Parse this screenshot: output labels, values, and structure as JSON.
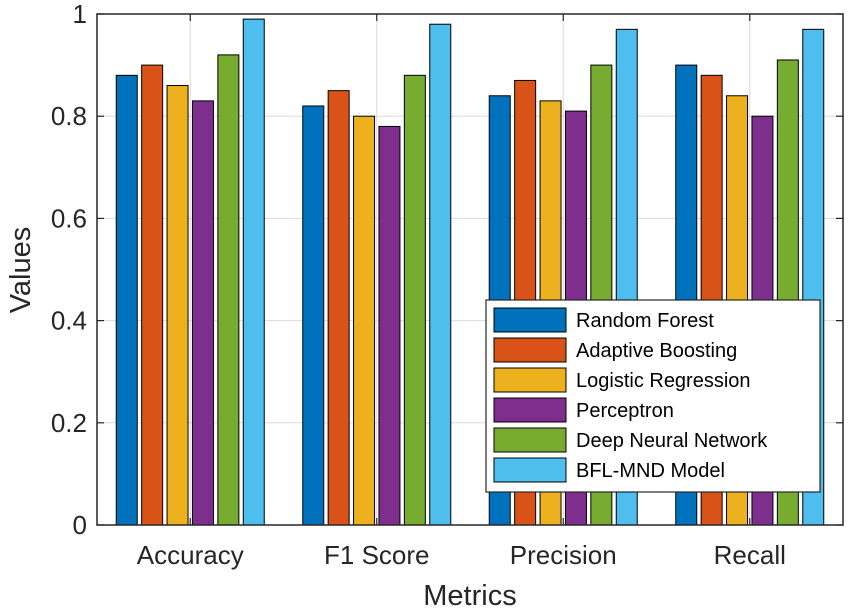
{
  "chart_data": {
    "type": "bar",
    "title": "",
    "xlabel": "Metrics",
    "ylabel": "Values",
    "ylim": [
      0,
      1
    ],
    "yticks": [
      0,
      0.2,
      0.4,
      0.6,
      0.8,
      1
    ],
    "ytick_labels": [
      "0",
      "0.2",
      "0.4",
      "0.6",
      "0.8",
      "1"
    ],
    "grid": true,
    "legend_position": "bottom-right",
    "categories": [
      "Accuracy",
      "F1 Score",
      "Precision",
      "Recall"
    ],
    "series": [
      {
        "name": "Random Forest",
        "color": "#0072BD",
        "values": [
          0.88,
          0.82,
          0.84,
          0.9
        ]
      },
      {
        "name": "Adaptive Boosting",
        "color": "#D95319",
        "values": [
          0.9,
          0.85,
          0.87,
          0.88
        ]
      },
      {
        "name": "Logistic Regression",
        "color": "#EDB120",
        "values": [
          0.86,
          0.8,
          0.83,
          0.84
        ]
      },
      {
        "name": "Perceptron",
        "color": "#7E2F8E",
        "values": [
          0.83,
          0.78,
          0.81,
          0.8
        ]
      },
      {
        "name": "Deep Neural Network",
        "color": "#77AC30",
        "values": [
          0.92,
          0.88,
          0.9,
          0.91
        ]
      },
      {
        "name": "BFL-MND Model",
        "color": "#4DBEEE",
        "values": [
          0.99,
          0.98,
          0.97,
          0.97
        ]
      }
    ]
  }
}
